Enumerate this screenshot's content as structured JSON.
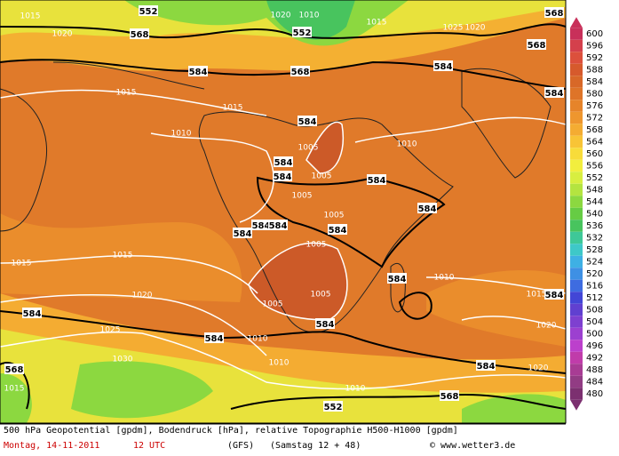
{
  "map": {
    "footer_line1": "500 hPa Geopotential [gpdm], Bodendruck [hPa], relative Topographie H500-H1000 [gpdm]",
    "date": "Montag, 14-11-2011",
    "time": "12 UTC",
    "model": "(GFS)",
    "forecast": "(Samstag 12 + 48)",
    "credit": "© www.wetter3.de",
    "scale_levels": [
      "600",
      "596",
      "592",
      "588",
      "584",
      "580",
      "576",
      "572",
      "568",
      "564",
      "560",
      "556",
      "552",
      "548",
      "544",
      "540",
      "536",
      "532",
      "528",
      "524",
      "520",
      "516",
      "512",
      "508",
      "504",
      "500",
      "496",
      "492",
      "488",
      "484",
      "480"
    ],
    "scale_colors": [
      "#c8305a",
      "#d4404c",
      "#dc503c",
      "#d65a2c",
      "#d86828",
      "#de7428",
      "#e6842a",
      "#ee962e",
      "#f4ac32",
      "#f8c436",
      "#f8dc3a",
      "#f2ee3e",
      "#d8ee40",
      "#b4e440",
      "#8cd840",
      "#66cc44",
      "#48c45e",
      "#3ec898",
      "#3ec8c8",
      "#3eb0e4",
      "#3e90e4",
      "#3e6ce0",
      "#4246d6",
      "#6040d0",
      "#7e40d0",
      "#9c40d0",
      "#bc40cc",
      "#c03caa",
      "#a83c94",
      "#923c84",
      "#7c3070"
    ],
    "contour_labels": [
      "552",
      "552",
      "568",
      "584",
      "568",
      "584",
      "584",
      "584",
      "584",
      "584",
      "584",
      "584",
      "584",
      "584",
      "584",
      "584",
      "584",
      "584",
      "584",
      "584",
      "584",
      "568",
      "584",
      "568",
      "552",
      "568",
      "568"
    ],
    "isobar_labels": [
      "1015",
      "1020",
      "1015",
      "1015",
      "1010",
      "1005",
      "1005",
      "1005",
      "1005",
      "1005",
      "1010",
      "1010",
      "1015",
      "1015",
      "1020",
      "1025",
      "1030",
      "1005",
      "1005",
      "1010",
      "1010",
      "1015",
      "1020",
      "1020",
      "1010",
      "1020",
      "1010",
      "1015",
      "1025",
      "1020",
      "1015"
    ]
  }
}
